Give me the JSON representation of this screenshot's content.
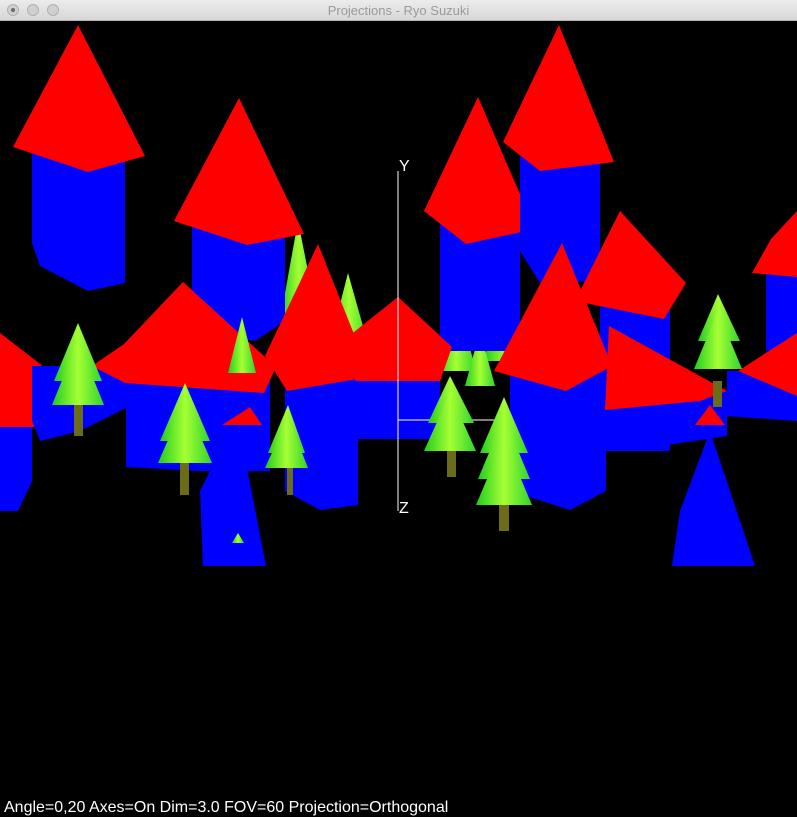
{
  "window": {
    "title": "Projections - Ryo Suzuki"
  },
  "axes": {
    "y_label": "Y",
    "z_label": "Z"
  },
  "status_line": "Angle=0,20  Axes=On  Dim=3.0  FOV=60  Projection=Orthogonal",
  "colors": {
    "background": "#000000",
    "house_roof": "#ff0000",
    "house_body": "#0000ff",
    "tree_foliage_light": "#a6ff33",
    "tree_foliage_dark": "#1fcc1f",
    "tree_trunk": "#6b6b1a",
    "axis": "#ffffff"
  }
}
